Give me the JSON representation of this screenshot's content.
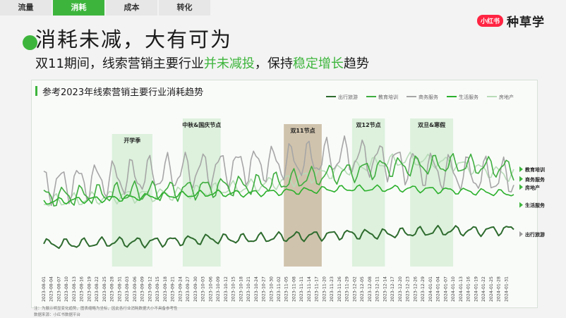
{
  "tabs": [
    {
      "label": "流量",
      "active": false
    },
    {
      "label": "消耗",
      "active": true
    },
    {
      "label": "成本",
      "active": false
    },
    {
      "label": "转化",
      "active": false
    }
  ],
  "brand": {
    "logo": "小红书",
    "text": "种草学"
  },
  "header": {
    "title": "消耗未减，大有可为",
    "subtitle_parts": [
      "双11期间，线索营销主要行业",
      "并未减投",
      "，保持",
      "稳定增长",
      "趋势"
    ]
  },
  "chart_data": {
    "type": "line",
    "title": "参考2023年线索营销主要行业消耗趋势",
    "x_start": "2023-08-01",
    "x_end": "2024-02-03",
    "x_tick_labels": [
      "2023-08-01",
      "2023-08-04",
      "2023-08-07",
      "2023-08-10",
      "2023-08-13",
      "2023-08-16",
      "2023-08-19",
      "2023-08-22",
      "2023-08-25",
      "2023-08-28",
      "2023-08-31",
      "2023-09-03",
      "2023-09-06",
      "2023-09-09",
      "2023-09-12",
      "2023-09-15",
      "2023-09-18",
      "2023-09-21",
      "2023-09-24",
      "2023-09-27",
      "2023-09-30",
      "2023-10-03",
      "2023-10-06",
      "2023-10-09",
      "2023-10-12",
      "2023-10-15",
      "2023-10-18",
      "2023-10-21",
      "2023-10-24",
      "2023-10-27",
      "2023-10-30",
      "2023-11-02",
      "2023-11-05",
      "2023-11-08",
      "2023-11-11",
      "2023-11-14",
      "2023-11-17",
      "2023-11-20",
      "2023-11-23",
      "2023-11-26",
      "2023-11-29",
      "2023-12-02",
      "2023-12-05",
      "2023-12-08",
      "2023-12-11",
      "2023-12-14",
      "2023-12-17",
      "2023-12-20",
      "2023-12-23",
      "2023-12-26",
      "2023-12-29",
      "2024-01-01",
      "2024-01-04",
      "2024-01-07",
      "2024-01-10",
      "2024-01-13",
      "2024-01-16",
      "2024-01-19",
      "2024-01-22",
      "2024-01-25",
      "2024-01-28",
      "2024-01-31"
    ],
    "legend": [
      "出行旅游",
      "教育培训",
      "商务服务",
      "生活服务",
      "房地产"
    ],
    "legend_placement": "top-right",
    "series": [
      {
        "name": "出行旅游",
        "color": "#2e6b2e",
        "level": [
          14,
          14,
          15,
          15,
          16,
          17,
          17,
          18,
          19,
          20,
          20,
          21,
          22,
          22,
          23
        ],
        "amp": 3
      },
      {
        "name": "教育培训",
        "color": "#3fae3f",
        "level": [
          43,
          44,
          45,
          46,
          47,
          49,
          50,
          52,
          55,
          58,
          61,
          62,
          63,
          62,
          60
        ],
        "amp": 6
      },
      {
        "name": "商务服务",
        "color": "#a6a6a6",
        "level": [
          50,
          52,
          54,
          56,
          58,
          60,
          62,
          64,
          66,
          68,
          66,
          62,
          58,
          56,
          54
        ],
        "amp": 11
      },
      {
        "name": "生活服务",
        "color": "#2bb02b",
        "level": [
          40,
          41,
          42,
          43,
          44,
          45,
          45,
          46,
          47,
          48,
          48,
          48,
          47,
          46,
          45
        ],
        "amp": 2
      },
      {
        "name": "房地产",
        "color": "#b8dcb8",
        "level": [
          40,
          41,
          43,
          44,
          45,
          47,
          49,
          52,
          56,
          60,
          64,
          66,
          64,
          60,
          56
        ],
        "amp": 4
      }
    ],
    "bands": [
      {
        "label": "开学季",
        "start": "2023-08-28",
        "end": "2023-09-13"
      },
      {
        "label": "中秋&国庆节点",
        "start": "2023-09-25",
        "end": "2023-10-10"
      },
      {
        "label": "双11节点",
        "start": "2023-11-04",
        "end": "2023-11-19"
      },
      {
        "label": "双12节点",
        "start": "2023-12-01",
        "end": "2023-12-14"
      },
      {
        "label": "双旦&寒假",
        "start": "2023-12-24",
        "end": "2024-01-10"
      }
    ],
    "end_labels": [
      {
        "label": "教育培训",
        "y": 60
      },
      {
        "label": "商务服务",
        "y": 54
      },
      {
        "label": "房地产",
        "y": 49
      },
      {
        "label": "生活服务",
        "y": 38
      },
      {
        "label": "出行旅游",
        "y": 20
      }
    ],
    "ylim": [
      0,
      100
    ],
    "grid": false
  },
  "footnotes": {
    "note": "注：为展示明显变化趋势，图表缩略为坐标，因此各行业消耗数据大小不具备参考性",
    "source": "数据来源：小红书数据平台"
  },
  "colors": {
    "accent": "#3db53c",
    "brand_red": "#ff2442"
  }
}
